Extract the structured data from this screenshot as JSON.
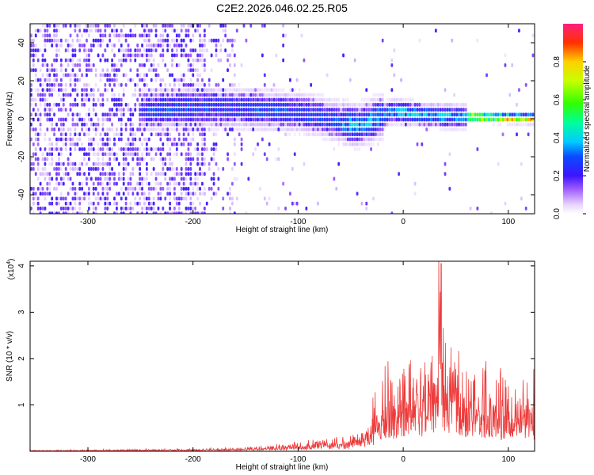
{
  "title": "C2E2.2026.046.02.25.R05",
  "chart_data": [
    {
      "type": "heatmap",
      "xlabel": "Height of straight line (km)",
      "ylabel": "Frequency (Hz)",
      "xlim": [
        -355,
        125
      ],
      "ylim": [
        -50,
        50
      ],
      "xticks": [
        -300,
        -200,
        -100,
        0,
        100
      ],
      "yticks": [
        -40,
        -20,
        0,
        20,
        40
      ],
      "colorbar": {
        "label": "Normalized spectral amplitude",
        "range": [
          0,
          1
        ],
        "ticks": [
          "0.0",
          "0.2",
          "0.4",
          "0.6",
          "0.8"
        ]
      },
      "ridge_centerline": {
        "x": [
          -250,
          -200,
          -150,
          -120,
          -100,
          -80,
          -60,
          -45,
          -30,
          -10,
          0,
          20,
          50,
          80,
          110,
          125
        ],
        "y": [
          4,
          6,
          5,
          4,
          3,
          1,
          -2,
          -4,
          -1,
          4,
          3,
          2,
          1,
          0.5,
          0,
          0
        ]
      },
      "ridge_peak_x_range": [
        60,
        125
      ]
    },
    {
      "type": "line",
      "xlabel": "Height of straight line (km)",
      "ylabel": "SNR (10 * v/v)",
      "y_scale_label": "(x10",
      "y_scale_exponent": "4",
      "xlim": [
        -355,
        125
      ],
      "ylim": [
        0,
        4.1
      ],
      "xticks": [
        -300,
        -200,
        -100,
        0,
        100
      ],
      "yticks": [
        1,
        2,
        3,
        4
      ],
      "series": [
        {
          "name": "SNR",
          "color": "#ee3b3b",
          "envelope_x": [
            -355,
            -300,
            -200,
            -150,
            -100,
            -75,
            -50,
            -35,
            -25,
            -15,
            0,
            10,
            20,
            30,
            35,
            40,
            50,
            60,
            70,
            80,
            90,
            100,
            110,
            125
          ],
          "envelope_y": [
            0.02,
            0.03,
            0.05,
            0.08,
            0.18,
            0.3,
            0.35,
            0.5,
            1.1,
            1.6,
            1.9,
            1.8,
            2.2,
            2.4,
            4.0,
            2.6,
            2.3,
            2.0,
            1.9,
            1.8,
            1.6,
            1.5,
            1.6,
            1.6
          ],
          "peak": {
            "x": 36,
            "y": 4.05
          }
        }
      ]
    }
  ]
}
